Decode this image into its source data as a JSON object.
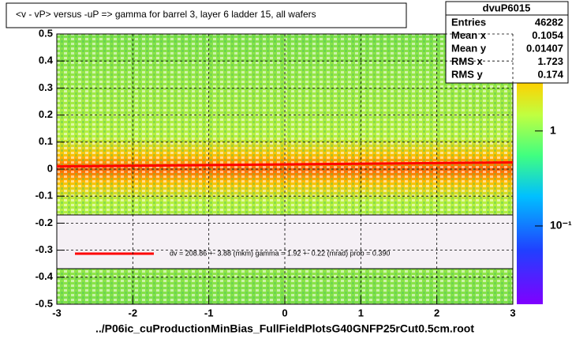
{
  "chart_data": {
    "type": "heatmap-profile",
    "title": "<v - vP>       versus  -uP =>  gamma for barrel 3, layer 6 ladder 15, all wafers",
    "xlabel": "../P06ic_cuProductionMinBias_FullFieldPlotsG40GNFP25rCut0.5cm.root",
    "xlim": [
      -3,
      3
    ],
    "xticks": [
      -3,
      -2,
      -1,
      0,
      1,
      2,
      3
    ],
    "ylim": [
      -0.5,
      0.5
    ],
    "yticks": [
      -0.5,
      -0.4,
      -0.3,
      -0.2,
      -0.1,
      0,
      0.1,
      0.2,
      0.3,
      0.4,
      0.5
    ],
    "grid": true,
    "series": [
      {
        "name": "fit",
        "color": "#ff0000",
        "x": [
          -3,
          3
        ],
        "values": [
          0.01,
          0.025
        ]
      }
    ],
    "fit_label": "dv =  208.86 +-  3.88 (mkm) gamma =    1.92 +-  0.22 (mrad) prob = 0.390",
    "zlim": [
      0.015,
      10.5
    ],
    "zlog": true,
    "zticks": [
      {
        "value": 1,
        "label": "1"
      },
      {
        "value": 0.1,
        "label": "10⁻¹"
      }
    ],
    "stats": {
      "title": "dvuP6015",
      "rows": [
        [
          "Entries",
          46282
        ],
        [
          "Mean x",
          0.1054
        ],
        [
          "Mean y",
          0.01407
        ],
        [
          "RMS x",
          1.723
        ],
        [
          "RMS y",
          0.174
        ]
      ]
    }
  }
}
